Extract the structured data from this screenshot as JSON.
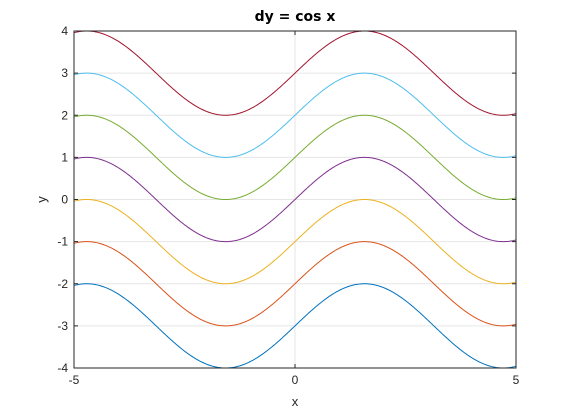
{
  "chart_data": {
    "type": "line",
    "title": "dy = cos x",
    "xlabel": "x",
    "ylabel": "y",
    "xlim": [
      -5,
      5
    ],
    "ylim": [
      -4,
      4
    ],
    "x_ticks": [
      -5,
      0,
      5
    ],
    "y_ticks": [
      4,
      3,
      2,
      1,
      0,
      -1,
      -2,
      -3,
      -4
    ],
    "x_tick_labels": [
      "-5",
      "0",
      "5"
    ],
    "y_tick_labels": [
      "4",
      "3",
      "2",
      "1",
      "0",
      "-1",
      "-2",
      "-3",
      "-4"
    ],
    "grid": true,
    "series": [
      {
        "function": "sin(x) + C",
        "C": -3,
        "color": "#0072bd"
      },
      {
        "function": "sin(x) + C",
        "C": -2,
        "color": "#d95319"
      },
      {
        "function": "sin(x) + C",
        "C": -1,
        "color": "#edb120"
      },
      {
        "function": "sin(x) + C",
        "C": 0,
        "color": "#7e2f8e"
      },
      {
        "function": "sin(x) + C",
        "C": 1,
        "color": "#77ac30"
      },
      {
        "function": "sin(x) + C",
        "C": 2,
        "color": "#4dbeee"
      },
      {
        "function": "sin(x) + C",
        "C": 3,
        "color": "#a2142f"
      }
    ]
  }
}
